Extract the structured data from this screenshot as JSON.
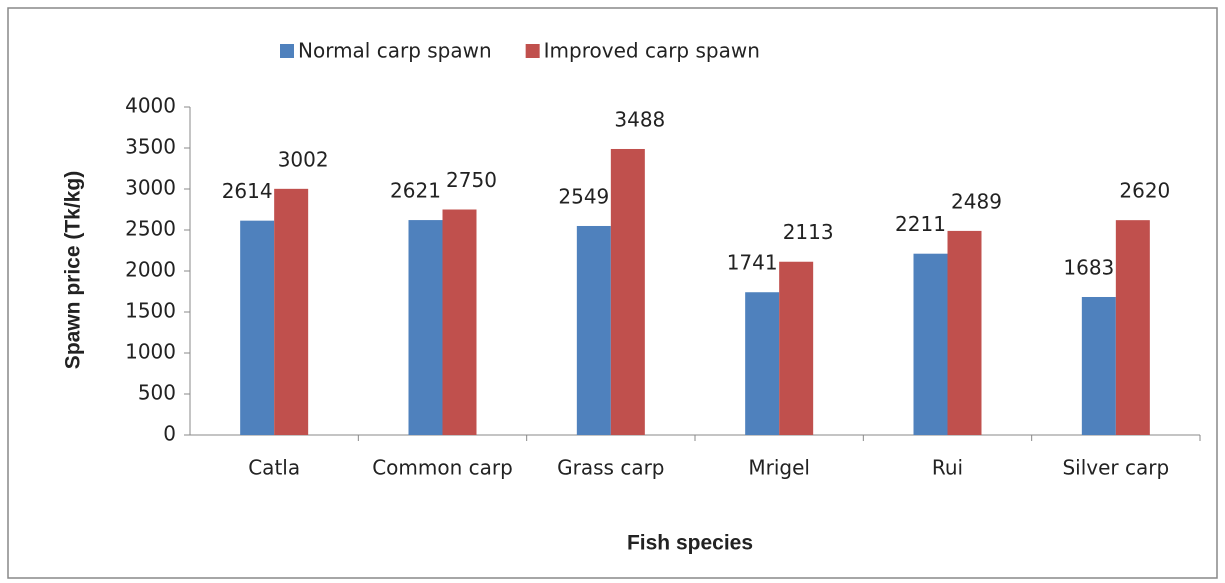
{
  "chart_data": {
    "type": "bar",
    "y_label": "Spawn price (Tk/kg)",
    "x_label": "Fish species",
    "categories": [
      "Catla",
      "Common carp",
      "Grass carp",
      "Mrigel",
      "Rui",
      "Silver carp"
    ],
    "series": [
      {
        "name": "Normal carp spawn",
        "color": "#4f81bd",
        "values": [
          2614,
          2621,
          2549,
          1741,
          2211,
          1683
        ]
      },
      {
        "name": "Improved carp spawn",
        "color": "#c0504d",
        "values": [
          3002,
          2750,
          3488,
          2113,
          2489,
          2620
        ]
      }
    ],
    "ylim": [
      0,
      4000
    ],
    "yticks": [
      0,
      500,
      1000,
      1500,
      2000,
      2500,
      3000,
      3500,
      4000
    ],
    "legend": "top"
  }
}
